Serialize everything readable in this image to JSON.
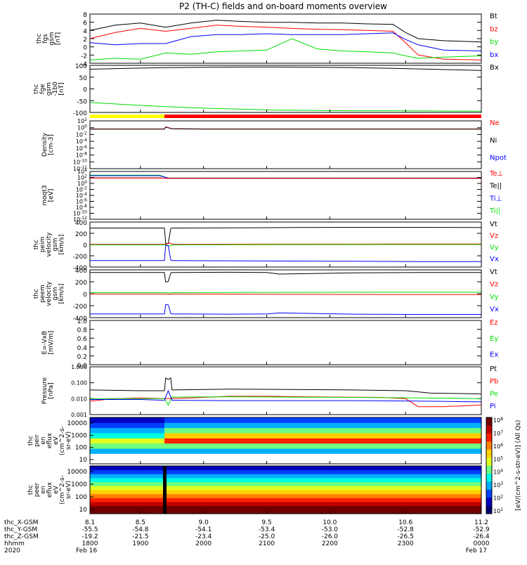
{
  "title": "P2 (TH-C) fields and on-board moments overview",
  "colorbar": {
    "label": "[eV/(cm^2-s-str-eV)] (All Qs)",
    "ticks": [
      "10^8",
      "10^7",
      "10^6",
      "10^5",
      "10^4",
      "10^3",
      "10^2",
      "10^1"
    ],
    "colors": [
      "#700000",
      "#c00000",
      "#ff2000",
      "#ff8000",
      "#ffd000",
      "#e0ff20",
      "#70ff80",
      "#00ffe0",
      "#00b0ff",
      "#0040ff",
      "#0000c0",
      "#000070"
    ]
  },
  "colors": {
    "black": "#000000",
    "red": "#ff0000",
    "green": "#00dd00",
    "blue": "#0000ff",
    "yellow": "#ffff00"
  },
  "chart_data": [
    {
      "type": "line",
      "ylabel": [
        "thc",
        "fgs",
        "gsm",
        "[nT]"
      ],
      "ylim": [
        -4,
        8
      ],
      "yticks": [
        "8",
        "6",
        "4",
        "2",
        "0",
        "-2",
        "-4"
      ],
      "legend": [
        {
          "name": "Bt",
          "color": "#000000"
        },
        {
          "name": "bz",
          "color": "#ff0000"
        },
        {
          "name": "by",
          "color": "#00dd00"
        },
        {
          "name": "bx",
          "color": "#0000ff"
        }
      ],
      "series": [
        {
          "name": "Bt",
          "color": "#000000",
          "x": [
            8.1,
            8.3,
            8.5,
            8.7,
            8.9,
            9.1,
            9.3,
            9.5,
            9.7,
            9.9,
            10.1,
            10.3,
            10.5,
            10.6,
            10.7,
            10.9,
            11.2
          ],
          "y": [
            4,
            5.3,
            5.8,
            4.8,
            5.8,
            6.5,
            6.2,
            6.0,
            6.0,
            5.8,
            5.8,
            5.6,
            5.5,
            3.5,
            2.0,
            1.5,
            1.2
          ]
        },
        {
          "name": "bz",
          "color": "#ff0000",
          "x": [
            8.1,
            8.3,
            8.5,
            8.7,
            8.9,
            9.1,
            9.3,
            9.5,
            9.7,
            9.9,
            10.1,
            10.3,
            10.5,
            10.6,
            10.7,
            10.9,
            11.2
          ],
          "y": [
            2,
            3.5,
            4.5,
            3.8,
            4.5,
            5.3,
            5.0,
            4.8,
            4.5,
            4.3,
            4.2,
            4.0,
            3.8,
            1.0,
            -2.0,
            -3.0,
            -3.2
          ]
        },
        {
          "name": "by",
          "color": "#00dd00",
          "x": [
            8.1,
            8.3,
            8.5,
            8.7,
            8.9,
            9.1,
            9.3,
            9.5,
            9.7,
            9.9,
            10.1,
            10.3,
            10.5,
            10.6,
            10.7,
            10.9,
            11.2
          ],
          "y": [
            -3.2,
            -2.8,
            -3.0,
            -1.5,
            -1.8,
            -1.2,
            -1.0,
            -0.8,
            2.0,
            -0.5,
            -1.0,
            -1.2,
            -1.5,
            -2.2,
            -2.8,
            -2.5,
            -2.2
          ]
        },
        {
          "name": "bx",
          "color": "#0000ff",
          "x": [
            8.1,
            8.3,
            8.5,
            8.7,
            8.9,
            9.1,
            9.3,
            9.5,
            9.7,
            9.9,
            10.1,
            10.3,
            10.5,
            10.6,
            10.7,
            10.9,
            11.2
          ],
          "y": [
            1.0,
            0.5,
            0.8,
            0.8,
            2.5,
            3.0,
            3.0,
            3.2,
            3.0,
            3.0,
            3.0,
            3.2,
            3.4,
            1.8,
            0.5,
            -0.8,
            -1.0
          ]
        }
      ]
    },
    {
      "type": "line",
      "ylabel": [
        "thc",
        "fge",
        "gsm",
        "-1b0",
        "[nT]"
      ],
      "ylim": [
        -120,
        100
      ],
      "yticks": [
        "100",
        "50",
        "0",
        "-50",
        "-100"
      ],
      "legend": [
        {
          "name": "Bx",
          "color": "#000000"
        }
      ],
      "series": [
        {
          "name": "Bx",
          "color": "#000000",
          "x": [
            8.1,
            8.4,
            8.7,
            9.0,
            9.3,
            9.6,
            9.9,
            10.2,
            10.5,
            10.8,
            11.2
          ],
          "y": [
            82,
            86,
            89,
            91,
            92,
            92,
            91,
            89,
            86,
            82,
            76
          ]
        },
        {
          "name": "",
          "color": "#00dd00",
          "x": [
            8.1,
            8.4,
            8.7,
            9.0,
            9.3,
            9.6,
            9.9,
            10.2,
            10.5,
            10.8,
            11.2
          ],
          "y": [
            -73,
            -84,
            -93,
            -100,
            -105,
            -109,
            -111,
            -112,
            -112,
            -113,
            -114
          ]
        }
      ]
    },
    {
      "type": "bar",
      "ylabel": [],
      "segments": [
        {
          "x0": 8.1,
          "x1": 8.69,
          "color": "#ffff00"
        },
        {
          "x0": 8.69,
          "x1": 11.2,
          "color": "#ff0000"
        }
      ]
    },
    {
      "type": "line",
      "ylabel": [
        "Density",
        "[cm-3]"
      ],
      "scale": "log",
      "ylim": [
        -13,
        3
      ],
      "yticks": [
        "10^2",
        "10^0",
        "10^-2",
        "10^-4",
        "10^-6",
        "10^-8",
        "10^-10",
        "10^-12"
      ],
      "legend": [
        {
          "name": "Ne",
          "color": "#ff0000"
        },
        {
          "name": "Ni",
          "color": "#000000"
        },
        {
          "name": "Npot",
          "color": "#0000ff"
        }
      ],
      "series": [
        {
          "name": "Ne",
          "color": "#ff0000",
          "x": [
            8.1,
            8.69,
            8.7,
            8.75,
            9.0,
            10.0,
            11.2
          ],
          "y": [
            0.3,
            0.3,
            1.0,
            0.4,
            0.3,
            0.3,
            0.3
          ]
        },
        {
          "name": "Ni",
          "color": "#000000",
          "x": [
            8.1,
            8.69,
            8.7,
            8.75,
            9.0,
            10.0,
            11.2
          ],
          "y": [
            0.25,
            0.25,
            0.9,
            0.35,
            0.25,
            0.25,
            0.25
          ]
        }
      ]
    },
    {
      "type": "line",
      "ylabel": [
        "moqt3",
        "[eV]"
      ],
      "scale": "log",
      "ylim": [
        -13,
        5
      ],
      "yticks": [
        "10^4",
        "10^2",
        "10^0",
        "10^-2",
        "10^-4",
        "10^-6",
        "10^-8",
        "10^-10",
        "10^-12"
      ],
      "legend": [
        {
          "name": "Te⊥",
          "color": "#ff0000"
        },
        {
          "name": "Te||",
          "color": "#000000"
        },
        {
          "name": "Ti⊥",
          "color": "#0000ff"
        },
        {
          "name": "Ti||",
          "color": "#00dd00"
        }
      ],
      "series": [
        {
          "name": "Ti||",
          "color": "#00dd00",
          "x": [
            8.1,
            8.65,
            8.72,
            11.2
          ],
          "y": [
            3.6,
            3.6,
            2.5,
            2.5
          ]
        },
        {
          "name": "Ti⊥",
          "color": "#0000ff",
          "x": [
            8.1,
            8.65,
            8.72,
            11.2
          ],
          "y": [
            3.4,
            3.4,
            2.5,
            2.5
          ]
        },
        {
          "name": "Te||",
          "color": "#000000",
          "x": [
            8.1,
            8.65,
            8.72,
            11.2
          ],
          "y": [
            2.6,
            2.6,
            2.4,
            2.4
          ]
        },
        {
          "name": "Te⊥",
          "color": "#ff0000",
          "x": [
            8.1,
            8.65,
            8.72,
            11.2
          ],
          "y": [
            2.5,
            2.5,
            2.4,
            2.4
          ]
        }
      ]
    },
    {
      "type": "line",
      "ylabel": [
        "thc",
        "peim",
        "velocity",
        "gsm",
        "[km/s]"
      ],
      "ylim": [
        -450,
        450
      ],
      "yticks": [
        "400",
        "200",
        "0",
        "-200",
        "-400"
      ],
      "legend": [
        {
          "name": "Vt",
          "color": "#000000"
        },
        {
          "name": "Vz",
          "color": "#ff0000"
        },
        {
          "name": "Vy",
          "color": "#00dd00"
        },
        {
          "name": "Vx",
          "color": "#0000ff"
        }
      ],
      "series": [
        {
          "name": "Vt",
          "color": "#000000",
          "x": [
            8.1,
            8.69,
            8.7,
            8.72,
            8.74,
            8.75,
            9.2,
            9.7,
            10.2,
            10.7,
            11.2
          ],
          "y": [
            330,
            330,
            20,
            20,
            320,
            330,
            335,
            340,
            345,
            345,
            340
          ]
        },
        {
          "name": "Vz",
          "color": "#ff0000",
          "x": [
            8.1,
            8.7,
            8.73,
            8.76,
            9.5,
            10.5,
            11.2
          ],
          "y": [
            5,
            5,
            30,
            5,
            8,
            10,
            10
          ]
        },
        {
          "name": "Vy",
          "color": "#00dd00",
          "x": [
            8.1,
            8.7,
            8.73,
            8.76,
            9.5,
            10.5,
            11.2
          ],
          "y": [
            -5,
            -5,
            -30,
            -5,
            -2,
            0,
            0
          ]
        },
        {
          "name": "Vx",
          "color": "#0000ff",
          "x": [
            8.1,
            8.69,
            8.7,
            8.72,
            8.74,
            8.75,
            9.2,
            9.7,
            10.2,
            10.7,
            11.2
          ],
          "y": [
            -320,
            -320,
            -20,
            -20,
            -310,
            -320,
            -325,
            -330,
            -335,
            -340,
            -340
          ]
        }
      ]
    },
    {
      "type": "line",
      "ylabel": [
        "thc",
        "peem",
        "velocity",
        "gsm",
        "[km/s]"
      ],
      "ylim": [
        -450,
        450
      ],
      "yticks": [
        "400",
        "200",
        "0",
        "-200",
        "-400"
      ],
      "legend": [
        {
          "name": "Vt",
          "color": "#000000"
        },
        {
          "name": "Vz",
          "color": "#ff0000"
        },
        {
          "name": "Vy",
          "color": "#00dd00"
        },
        {
          "name": "Vx",
          "color": "#0000ff"
        }
      ],
      "series": [
        {
          "name": "Vt",
          "color": "#000000",
          "x": [
            8.1,
            8.69,
            8.7,
            8.72,
            8.74,
            8.75,
            9.2,
            9.5,
            9.6,
            10.2,
            10.7,
            11.2
          ],
          "y": [
            400,
            400,
            220,
            230,
            390,
            400,
            405,
            400,
            370,
            395,
            400,
            400
          ]
        },
        {
          "name": "Vz",
          "color": "#ff0000",
          "x": [
            8.1,
            8.7,
            8.73,
            8.76,
            9.5,
            10.5,
            11.2
          ],
          "y": [
            -5,
            -5,
            -10,
            -5,
            -10,
            -15,
            -15
          ]
        },
        {
          "name": "Vy",
          "color": "#00dd00",
          "x": [
            8.1,
            8.7,
            8.73,
            8.76,
            9.5,
            10.5,
            11.2
          ],
          "y": [
            20,
            20,
            15,
            20,
            25,
            30,
            30
          ]
        },
        {
          "name": "Vx",
          "color": "#0000ff",
          "x": [
            8.1,
            8.69,
            8.7,
            8.72,
            8.74,
            8.75,
            9.2,
            9.5,
            9.6,
            10.2,
            10.7,
            11.2
          ],
          "y": [
            -380,
            -380,
            -200,
            -210,
            -370,
            -380,
            -385,
            -380,
            -360,
            -385,
            -390,
            -390
          ]
        }
      ]
    },
    {
      "type": "line",
      "ylabel": [
        "E=-VxB",
        "[mV/m]"
      ],
      "ylim": [
        0,
        1
      ],
      "yticks": [
        "1.0",
        "0.8",
        "0.6",
        "0.4",
        "0.2",
        "0.0"
      ],
      "legend": [
        {
          "name": "Ez",
          "color": "#ff0000"
        },
        {
          "name": "Ey",
          "color": "#00dd00"
        },
        {
          "name": "Ex",
          "color": "#0000ff"
        }
      ],
      "series": []
    },
    {
      "type": "line",
      "ylabel": [
        "Pressure",
        "[nPa]"
      ],
      "scale": "log",
      "ylim": [
        -3,
        0
      ],
      "yticks": [
        "1.000",
        "0.100",
        "0.010",
        "0.001"
      ],
      "legend": [
        {
          "name": "Pt",
          "color": "#000000"
        },
        {
          "name": "Pb",
          "color": "#ff0000"
        },
        {
          "name": "Pe",
          "color": "#00dd00"
        },
        {
          "name": "Pi",
          "color": "#0000ff"
        }
      ],
      "series": [
        {
          "name": "Pt",
          "color": "#000000",
          "x": [
            8.1,
            8.5,
            8.69,
            8.7,
            8.72,
            8.74,
            8.75,
            9.2,
            9.7,
            10.2,
            10.6,
            10.8,
            11.2
          ],
          "y": [
            -1.45,
            -1.5,
            -1.5,
            -0.7,
            -0.8,
            -0.7,
            -1.45,
            -1.4,
            -1.42,
            -1.45,
            -1.5,
            -1.65,
            -1.7
          ]
        },
        {
          "name": "Pb",
          "color": "#ff0000",
          "x": [
            8.1,
            8.3,
            8.5,
            8.7,
            8.9,
            9.2,
            9.5,
            9.8,
            10.1,
            10.4,
            10.6,
            10.7,
            10.9,
            11.2
          ],
          "y": [
            -2.15,
            -2.0,
            -1.95,
            -2.0,
            -1.95,
            -1.85,
            -1.85,
            -1.88,
            -1.9,
            -1.92,
            -2.0,
            -2.5,
            -2.5,
            -2.4
          ]
        },
        {
          "name": "Pe",
          "color": "#00dd00",
          "x": [
            8.1,
            8.5,
            8.69,
            8.72,
            8.75,
            9.2,
            9.7,
            10.2,
            10.7,
            11.2
          ],
          "y": [
            -2.0,
            -2.0,
            -2.0,
            -2.4,
            -1.9,
            -1.88,
            -1.9,
            -1.92,
            -1.95,
            -2.0
          ]
        },
        {
          "name": "Pi",
          "color": "#0000ff",
          "x": [
            8.1,
            8.5,
            8.69,
            8.72,
            8.75,
            9.2,
            9.7,
            10.2,
            10.7,
            11.2
          ],
          "y": [
            -2.05,
            -2.05,
            -2.1,
            -1.5,
            -2.1,
            -2.12,
            -2.12,
            -2.12,
            -2.15,
            -2.2
          ]
        }
      ]
    },
    {
      "type": "heatmap",
      "ylabel": [
        "thc",
        "peir",
        "en",
        "eflux",
        "eV",
        "(cm^2-s-",
        "sr-eV)"
      ],
      "yticks": [
        "10000",
        "1000",
        "100",
        "10"
      ],
      "ylim": [
        10,
        15000
      ],
      "bands": [
        {
          "label": "before 8.69 (levels by energy bin, low→high)",
          "levels": [
            0,
            0,
            3,
            5,
            6,
            4,
            3,
            2,
            1
          ]
        },
        {
          "label": "after 8.69 (levels by energy bin, low→high)",
          "levels": [
            0,
            0,
            3,
            5,
            9,
            7,
            5,
            3,
            2
          ]
        }
      ]
    },
    {
      "type": "heatmap",
      "ylabel": [
        "thc",
        "peer",
        "en",
        "eflux",
        "eV",
        "(cm^2-s-",
        "sr-eV)"
      ],
      "yticks": [
        "10000",
        "1000",
        "100",
        "10"
      ],
      "ylim": [
        5,
        30000
      ],
      "bands": [
        {
          "label": "levels by energy bin, low→high",
          "levels": [
            11,
            11,
            10,
            9,
            8,
            7,
            6,
            5,
            4,
            3,
            2,
            1
          ]
        }
      ]
    }
  ],
  "xaxis": {
    "tickvalues": [
      8.1,
      8.5,
      9.0,
      9.5,
      10.0,
      10.6,
      11.2
    ],
    "xlim": [
      8.1,
      11.2
    ],
    "rows": [
      {
        "label": "thc_X-GSM",
        "values": [
          "8.1",
          "8.5",
          "9.0",
          "9.5",
          "10.0",
          "10.6",
          "11.2"
        ]
      },
      {
        "label": "thc_Y-GSM",
        "values": [
          "-55.5",
          "-54.8",
          "-54.1",
          "-53.4",
          "-53.0",
          "-52.8",
          "-52.9"
        ]
      },
      {
        "label": "thc_Z-GSM",
        "values": [
          "-19.2",
          "-21.5",
          "-23.4",
          "-25.0",
          "-26.0",
          "-26.5",
          "-26.4"
        ]
      },
      {
        "label": "hhmm",
        "values": [
          "1800",
          "1900",
          "2000",
          "2100",
          "2200",
          "2300",
          "0000"
        ]
      },
      {
        "label": "2020",
        "values": [
          "Feb 16",
          "",
          "",
          "",
          "",
          "",
          "Feb 17"
        ]
      }
    ]
  }
}
